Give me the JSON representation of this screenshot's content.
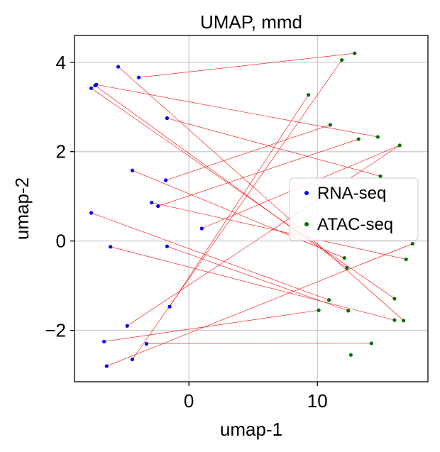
{
  "chart_data": {
    "type": "scatter",
    "title": "UMAP, mmd",
    "xlabel": "umap-1",
    "ylabel": "umap-2",
    "xlim": [
      -8.9,
      18.6
    ],
    "ylim": [
      -3.15,
      4.6
    ],
    "xticks": [
      0,
      10
    ],
    "xtick_labels": [
      "0",
      "10"
    ],
    "yticks": [
      -2,
      0,
      2,
      4
    ],
    "ytick_labels": [
      "−2",
      "0",
      "2",
      "4"
    ],
    "grid": true,
    "legend_position": "center-right",
    "series": [
      {
        "name": "RNA-seq",
        "color": "#0000ee",
        "points": [
          [
            -5.5,
            3.9
          ],
          [
            -3.9,
            3.66
          ],
          [
            -7.2,
            3.5
          ],
          [
            -7.3,
            3.48
          ],
          [
            -7.6,
            3.42
          ],
          [
            -1.7,
            2.75
          ],
          [
            -4.4,
            1.58
          ],
          [
            -1.8,
            1.36
          ],
          [
            -2.9,
            0.86
          ],
          [
            -2.4,
            0.78
          ],
          [
            1.0,
            0.28
          ],
          [
            -7.6,
            0.63
          ],
          [
            -6.1,
            -0.13
          ],
          [
            -1.7,
            -0.12
          ],
          [
            -1.5,
            -1.47
          ],
          [
            -4.8,
            -1.9
          ],
          [
            -3.3,
            -2.3
          ],
          [
            -6.6,
            -2.25
          ],
          [
            -4.4,
            -2.65
          ],
          [
            -6.4,
            -2.8
          ]
        ]
      },
      {
        "name": "ATAC-seq",
        "color": "#007000",
        "points": [
          [
            12.9,
            4.2
          ],
          [
            11.9,
            4.05
          ],
          [
            9.3,
            3.27
          ],
          [
            11.0,
            2.6
          ],
          [
            14.7,
            2.33
          ],
          [
            13.2,
            2.28
          ],
          [
            16.4,
            2.14
          ],
          [
            14.9,
            1.45
          ],
          [
            17.4,
            -0.06
          ],
          [
            12.1,
            -0.38
          ],
          [
            16.9,
            -0.41
          ],
          [
            12.3,
            -0.6
          ],
          [
            10.9,
            -1.32
          ],
          [
            16.0,
            -1.29
          ],
          [
            10.1,
            -1.55
          ],
          [
            12.4,
            -1.56
          ],
          [
            16.0,
            -1.77
          ],
          [
            16.7,
            -1.78
          ],
          [
            14.2,
            -2.29
          ],
          [
            12.6,
            -2.55
          ]
        ]
      }
    ],
    "links": [
      [
        0,
        17
      ],
      [
        1,
        0
      ],
      [
        2,
        4
      ],
      [
        3,
        11
      ],
      [
        4,
        13
      ],
      [
        5,
        7
      ],
      [
        6,
        9
      ],
      [
        7,
        3
      ],
      [
        8,
        10
      ],
      [
        9,
        5
      ],
      [
        10,
        6
      ],
      [
        11,
        12
      ],
      [
        12,
        16
      ],
      [
        13,
        15
      ],
      [
        14,
        2
      ],
      [
        15,
        6
      ],
      [
        16,
        18
      ],
      [
        17,
        14
      ],
      [
        18,
        1
      ],
      [
        19,
        8
      ]
    ],
    "link_color": "#ff0000"
  }
}
